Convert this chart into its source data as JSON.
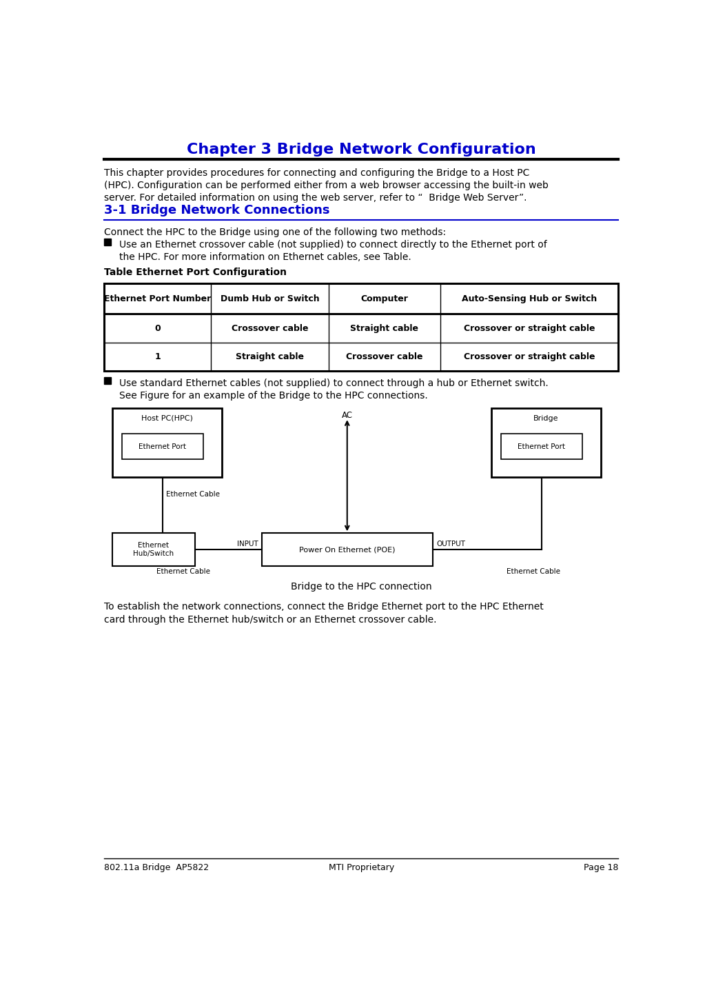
{
  "title": "Chapter 3 Bridge Network Configuration",
  "title_color": "#0000CC",
  "bg_color": "#ffffff",
  "intro_lines": [
    "This chapter provides procedures for connecting and configuring the Bridge to a Host PC",
    "(HPC). Configuration can be performed either from a web browser accessing the built-in web",
    "server. For detailed information on using the web server, refer to “  Bridge Web Server”."
  ],
  "section_title": "3-1 Bridge Network Connections",
  "section_color": "#0000CC",
  "body1": "Connect the HPC to the Bridge using one of the following two methods:",
  "bullet1_line1": "Use an Ethernet crossover cable (not supplied) to connect directly to the Ethernet port of",
  "bullet1_line2": "the HPC. For more information on Ethernet cables, see Table.",
  "table_caption": "Table Ethernet Port Configuration",
  "table_headers": [
    "Ethernet Port Number",
    "Dumb Hub or Switch",
    "Computer",
    "Auto-Sensing Hub or Switch"
  ],
  "table_row0": [
    "0",
    "Crossover cable",
    "Straight cable",
    "Crossover or straight cable"
  ],
  "table_row1": [
    "1",
    "Straight cable",
    "Crossover cable",
    "Crossover or straight cable"
  ],
  "bullet2_line1": "Use standard Ethernet cables (not supplied) to connect through a hub or Ethernet switch.",
  "bullet2_line2": "See Figure for an example of the Bridge to the HPC connections.",
  "diagram_caption": "Bridge to the HPC connection",
  "footer_text1": "To establish the network connections, connect the Bridge Ethernet port to the HPC Ethernet",
  "footer_text2": "card through the Ethernet hub/switch or an Ethernet crossover cable.",
  "page_footer_left": "802.11a Bridge  AP5822",
  "page_footer_center": "MTI Proprietary",
  "page_footer_right": "Page 18"
}
